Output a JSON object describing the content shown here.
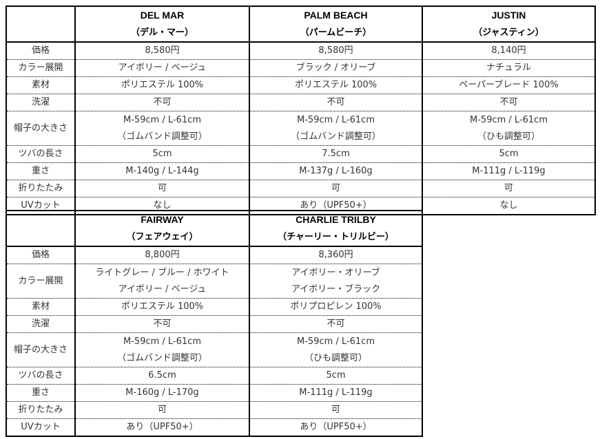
{
  "labels": [
    "価格",
    "カラー展開",
    "素材",
    "洗濯",
    "帽子の大きさ",
    "ツバの長さ",
    "重さ",
    "折りたたみ",
    "UVカット"
  ],
  "products": [
    {
      "name": "DEL MAR",
      "kana": "（デル・マー）",
      "price": "8,580円",
      "colors": [
        "アイボリー / ベージュ"
      ],
      "material": "ポリエステル 100%",
      "wash": "不可",
      "size": [
        "M-59cm / L-61cm",
        "（ゴムバンド調整可）"
      ],
      "brim": "5cm",
      "weight": "M-140g / L-144g",
      "fold": "可",
      "uv": "なし"
    },
    {
      "name": "PALM BEACH",
      "kana": "（パームビーチ）",
      "price": "8,580円",
      "colors": [
        "ブラック / オリーブ"
      ],
      "material": "ポリエステル 100%",
      "wash": "不可",
      "size": [
        "M-59cm / L-61cm",
        "（ゴムバンド調整可）"
      ],
      "brim": "7.5cm",
      "weight": "M-137g / L-160g",
      "fold": "可",
      "uv": "あり（UPF50+）"
    },
    {
      "name": "JUSTIN",
      "kana": "（ジャスティン）",
      "price": "8,140円",
      "colors": [
        "ナチュラル"
      ],
      "material": "ペーパーブレード 100%",
      "wash": "不可",
      "size": [
        "M-59cm / L-61cm",
        "（ひも調整可）"
      ],
      "brim": "5cm",
      "weight": "M-111g / L-119g",
      "fold": "可",
      "uv": "なし"
    },
    {
      "name": "FAIRWAY",
      "kana": "（フェアウェイ）",
      "price": "8,800円",
      "colors": [
        "ライトグレー / ブルー / ホワイト",
        "アイボリー / ベージュ"
      ],
      "material": "ポリエステル 100%",
      "wash": "不可",
      "size": [
        "M-59cm / L-61cm",
        "（ゴムバンド調整可）"
      ],
      "brim": "6.5cm",
      "weight": "M-160g / L-170g",
      "fold": "可",
      "uv": "あり（UPF50+）"
    },
    {
      "name": "CHARLIE TRILBY",
      "kana": "（チャーリー・トリルビー）",
      "price": "8,360円",
      "colors": [
        "アイボリー・オリーブ",
        "アイボリー・ブラック"
      ],
      "material": "ポリプロピレン 100%",
      "wash": "不可",
      "size": [
        "M-59cm / L-61cm",
        "（ひも調整可）"
      ],
      "brim": "5cm",
      "weight": "M-111g / L-119g",
      "fold": "可",
      "uv": "あり（UPF50+）"
    }
  ]
}
